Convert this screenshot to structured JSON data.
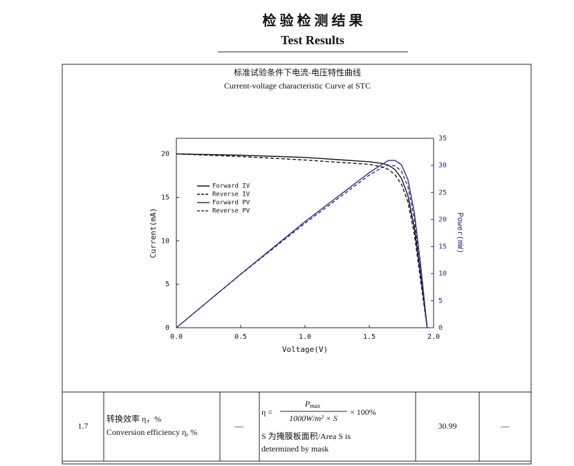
{
  "header": {
    "title_cn": "检 验 检 测 结 果",
    "title_en": "Test Results"
  },
  "chart_data": {
    "type": "line",
    "title": "标准试验条件下电流-电压特性曲线",
    "subtitle": "Current-voltage characteristic Curve at STC",
    "x_label": "Voltage(V)",
    "y_label": "Current(mA)",
    "y2_label": "Power(mW)",
    "x": [
      0,
      0.5,
      1.0,
      1.5,
      1.6,
      1.65,
      1.7,
      1.75,
      1.8,
      1.85,
      1.9,
      1.95
    ],
    "series": [
      {
        "name": "Forward IV",
        "color": "#111111",
        "linestyle": "solid",
        "values": [
          20,
          19.85,
          19.6,
          19.1,
          18.9,
          18.7,
          18.2,
          17.2,
          15.2,
          11.5,
          6,
          0
        ]
      },
      {
        "name": "Reverse IV",
        "color": "#111111",
        "linestyle": "dashed",
        "values": [
          20,
          19.7,
          19.3,
          18.8,
          18.5,
          18.2,
          17.6,
          16.5,
          14.5,
          10.8,
          5.3,
          0
        ]
      },
      {
        "name": "Forward PV",
        "color": "#2a2a8c",
        "linestyle": "solid",
        "axis": "y2",
        "values": [
          0,
          9.9,
          19.6,
          28.65,
          30.2,
          30.9,
          30.9,
          30.1,
          27.4,
          21.3,
          11.4,
          0
        ]
      },
      {
        "name": "Reverse PV",
        "color": "#2a2a8c",
        "linestyle": "dashed",
        "axis": "y2",
        "values": [
          0,
          9.85,
          19.3,
          28.2,
          29.6,
          30,
          29.9,
          28.9,
          26.1,
          20,
          10.1,
          0
        ]
      }
    ],
    "xlim": [
      0,
      2
    ],
    "xticks": [
      {
        "value": 0,
        "label": "0.0"
      },
      {
        "value": 0.5,
        "label": "0.5"
      },
      {
        "value": 1,
        "label": "1.0"
      },
      {
        "value": 1.5,
        "label": "1.5"
      },
      {
        "value": 2,
        "label": "2.0"
      }
    ],
    "ylim": [
      0,
      21.8
    ],
    "yticks": [
      0,
      5,
      10,
      15,
      20
    ],
    "y2lim": [
      0,
      35
    ],
    "y2ticks": [
      0,
      5,
      10,
      15,
      20,
      25,
      30,
      35
    ],
    "legend": "left"
  },
  "table": {
    "row": {
      "no": "1.7",
      "item_cn": "转换效率 η，%",
      "item_en": "Conversion efficiency η, %",
      "unit": "—",
      "formula": {
        "lhs": "η =",
        "numerator": "P",
        "numerator_sub": "max",
        "denominator": "1000W/m² × S",
        "suffix": "× 100%"
      },
      "note_1": "S 为掩膜板面积/Area S is",
      "note_2": "determined by mask",
      "result": "30.99",
      "remark": "—"
    }
  }
}
